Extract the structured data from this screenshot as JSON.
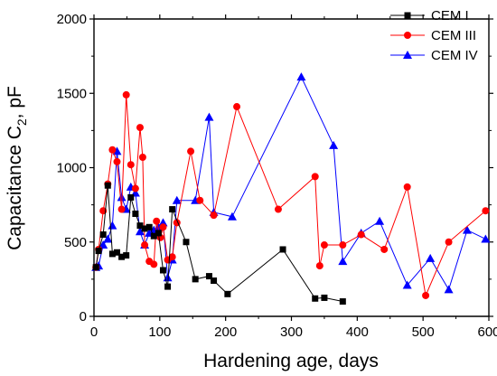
{
  "chart_data": {
    "type": "line",
    "xlabel": "Hardening age, days",
    "ylabel_main": "Capacitance C",
    "ylabel_subscript": "2",
    "ylabel_suffix": ", pF",
    "xlim": [
      0,
      600
    ],
    "ylim": [
      0,
      2000
    ],
    "xticks": [
      0,
      100,
      200,
      300,
      400,
      500,
      600
    ],
    "yticks": [
      0,
      500,
      1000,
      1500,
      2000
    ],
    "grid": false,
    "legend_position": "top-right",
    "series": [
      {
        "name": "CEM I",
        "color": "#000000",
        "marker": "square",
        "points": [
          [
            3,
            330
          ],
          [
            7,
            440
          ],
          [
            14,
            550
          ],
          [
            21,
            880
          ],
          [
            28,
            420
          ],
          [
            35,
            430
          ],
          [
            42,
            400
          ],
          [
            49,
            410
          ],
          [
            56,
            800
          ],
          [
            63,
            690
          ],
          [
            70,
            610
          ],
          [
            77,
            590
          ],
          [
            84,
            600
          ],
          [
            91,
            540
          ],
          [
            98,
            560
          ],
          [
            105,
            310
          ],
          [
            112,
            200
          ],
          [
            119,
            720
          ],
          [
            140,
            500
          ],
          [
            154,
            250
          ],
          [
            175,
            270
          ],
          [
            182,
            240
          ],
          [
            203,
            150
          ],
          [
            287,
            450
          ],
          [
            336,
            120
          ],
          [
            350,
            125
          ],
          [
            378,
            100
          ]
        ]
      },
      {
        "name": "CEM III",
        "color": "#ff0000",
        "marker": "circle",
        "points": [
          [
            3,
            330
          ],
          [
            7,
            450
          ],
          [
            14,
            710
          ],
          [
            21,
            890
          ],
          [
            28,
            1120
          ],
          [
            35,
            1040
          ],
          [
            42,
            720
          ],
          [
            49,
            1490
          ],
          [
            56,
            1020
          ],
          [
            63,
            860
          ],
          [
            70,
            1270
          ],
          [
            74,
            1070
          ],
          [
            77,
            480
          ],
          [
            84,
            370
          ],
          [
            91,
            350
          ],
          [
            95,
            640
          ],
          [
            101,
            530
          ],
          [
            105,
            600
          ],
          [
            112,
            380
          ],
          [
            119,
            400
          ],
          [
            126,
            630
          ],
          [
            147,
            1110
          ],
          [
            161,
            780
          ],
          [
            182,
            680
          ],
          [
            217,
            1410
          ],
          [
            280,
            720
          ],
          [
            336,
            940
          ],
          [
            343,
            340
          ],
          [
            350,
            480
          ],
          [
            378,
            480
          ],
          [
            406,
            550
          ],
          [
            441,
            450
          ],
          [
            476,
            870
          ],
          [
            504,
            140
          ],
          [
            539,
            500
          ],
          [
            595,
            710
          ]
        ]
      },
      {
        "name": "CEM IV",
        "color": "#0000ff",
        "marker": "triangle",
        "points": [
          [
            3,
            330
          ],
          [
            7,
            340
          ],
          [
            14,
            480
          ],
          [
            21,
            520
          ],
          [
            28,
            610
          ],
          [
            35,
            1110
          ],
          [
            42,
            800
          ],
          [
            49,
            720
          ],
          [
            56,
            870
          ],
          [
            63,
            830
          ],
          [
            70,
            570
          ],
          [
            77,
            480
          ],
          [
            84,
            560
          ],
          [
            91,
            580
          ],
          [
            98,
            600
          ],
          [
            105,
            630
          ],
          [
            112,
            260
          ],
          [
            119,
            380
          ],
          [
            126,
            780
          ],
          [
            154,
            780
          ],
          [
            175,
            1340
          ],
          [
            182,
            700
          ],
          [
            210,
            670
          ],
          [
            315,
            1610
          ],
          [
            364,
            1150
          ],
          [
            378,
            370
          ],
          [
            406,
            560
          ],
          [
            434,
            640
          ],
          [
            476,
            210
          ],
          [
            511,
            390
          ],
          [
            539,
            180
          ],
          [
            567,
            580
          ],
          [
            595,
            520
          ]
        ]
      }
    ]
  }
}
